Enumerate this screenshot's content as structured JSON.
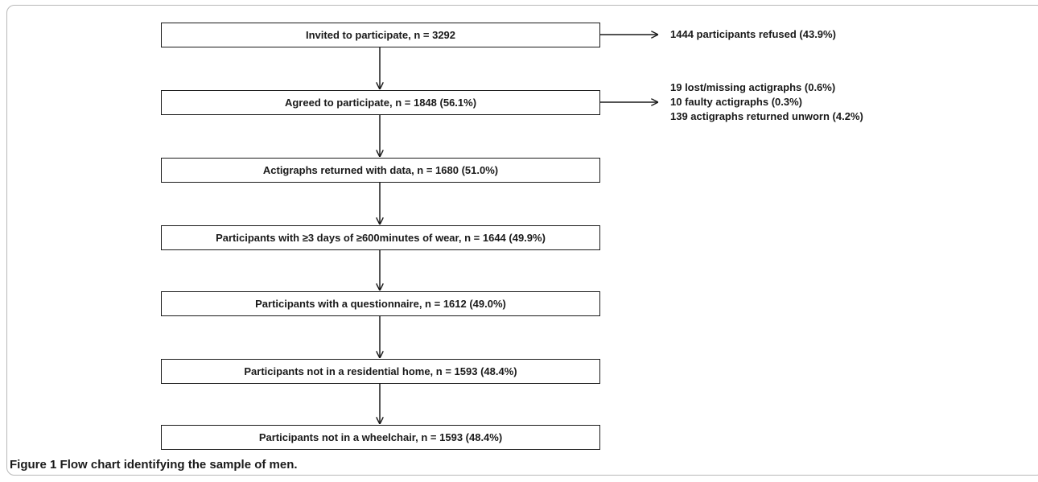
{
  "boxes": [
    "Invited to participate, n = 3292",
    "Agreed to participate, n = 1848 (56.1%)",
    "Actigraphs returned with data, n = 1680 (51.0%)",
    "Participants with ≥3 days of ≥600minutes of wear, n = 1644 (49.9%)",
    "Participants with a questionnaire, n = 1612 (49.0%)",
    "Participants not in a residential home, n = 1593 (48.4%)",
    "Participants not in a wheelchair, n = 1593 (48.4%)"
  ],
  "exclusions": {
    "refused": "1444 participants refused (43.9%)",
    "lost": "19 lost/missing actigraphs (0.6%)",
    "faulty": "10 faulty actigraphs (0.3%)",
    "unworn": "139 actigraphs returned unworn (4.2%)"
  },
  "caption": {
    "label": "Figure 1",
    "text": "Flow chart identifying the sample of men."
  }
}
